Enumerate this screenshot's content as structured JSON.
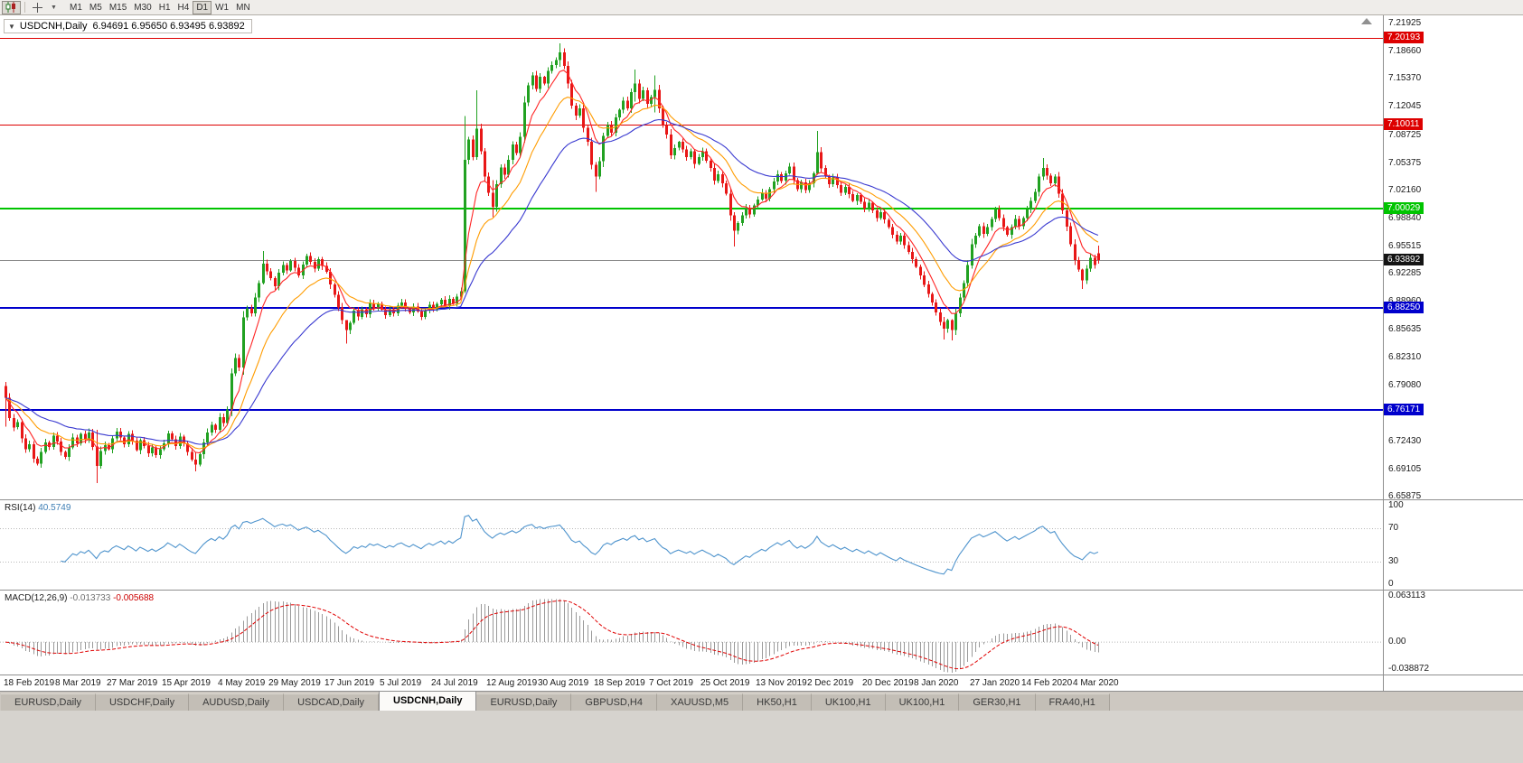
{
  "toolbar": {
    "timeframes": [
      "M1",
      "M5",
      "M15",
      "M30",
      "H1",
      "H4",
      "D1",
      "W1",
      "MN"
    ],
    "active_timeframe": "D1"
  },
  "chart": {
    "symbol": "USDCNH,Daily",
    "ohlc_text": "6.94691 6.95650 6.93495 6.93892",
    "levels": [
      {
        "price": 7.20193,
        "label": "7.20193",
        "color": "#dd0000",
        "width": 1
      },
      {
        "price": 7.10011,
        "label": "7.10011",
        "color": "#dd0000",
        "width": 1
      },
      {
        "price": 7.00029,
        "label": "7.00029",
        "color": "#00c400",
        "width": 2
      },
      {
        "price": 6.8825,
        "label": "6.88250",
        "color": "#0000cc",
        "width": 2
      },
      {
        "price": 6.76171,
        "label": "6.76171",
        "color": "#0000cc",
        "width": 2
      }
    ],
    "price_axis_labels": [
      "7.21925",
      "7.18660",
      "7.15370",
      "7.12045",
      "7.08725",
      "7.05375",
      "7.02160",
      "6.98840",
      "6.95515",
      "6.92285",
      "6.88960",
      "6.85635",
      "6.82310",
      "6.79080",
      "6.75755",
      "6.72430",
      "6.69105",
      "6.65875"
    ],
    "current_price_badge": "6.93892",
    "date_labels": [
      {
        "label": "18 Feb 2019",
        "index": 0
      },
      {
        "label": "8 Mar 2019",
        "index": 13
      },
      {
        "label": "27 Mar 2019",
        "index": 26
      },
      {
        "label": "15 Apr 2019",
        "index": 40
      },
      {
        "label": "4 May 2019",
        "index": 54
      },
      {
        "label": "29 May 2019",
        "index": 67
      },
      {
        "label": "17 Jun 2019",
        "index": 81
      },
      {
        "label": "5 Jul 2019",
        "index": 95
      },
      {
        "label": "24 Jul 2019",
        "index": 108
      },
      {
        "label": "12 Aug 2019",
        "index": 122
      },
      {
        "label": "30 Aug 2019",
        "index": 135
      },
      {
        "label": "18 Sep 2019",
        "index": 149
      },
      {
        "label": "7 Oct 2019",
        "index": 163
      },
      {
        "label": "25 Oct 2019",
        "index": 176
      },
      {
        "label": "13 Nov 2019",
        "index": 190
      },
      {
        "label": "2 Dec 2019",
        "index": 203
      },
      {
        "label": "20 Dec 2019",
        "index": 217
      },
      {
        "label": "8 Jan 2020",
        "index": 230
      },
      {
        "label": "27 Jan 2020",
        "index": 244
      },
      {
        "label": "14 Feb 2020",
        "index": 257
      },
      {
        "label": "4 Mar 2020",
        "index": 270
      }
    ]
  },
  "rsi": {
    "label": "RSI(14)",
    "value": "40.5749",
    "axis": [
      {
        "label": "100",
        "value": 100
      },
      {
        "label": "70",
        "value": 70
      },
      {
        "label": "30",
        "value": 30
      },
      {
        "label": "0",
        "value": 0
      }
    ],
    "guide_levels": [
      70,
      30
    ],
    "line_color": "#4f94cd"
  },
  "macd": {
    "label": "MACD(12,26,9)",
    "value_main": "-0.013733",
    "value_signal": "-0.005688",
    "axis": [
      {
        "label": "0.063113",
        "value": 0.063113
      },
      {
        "label": "0.00",
        "value": 0.0
      },
      {
        "label": "-0.038872",
        "value": -0.038872
      }
    ],
    "hist_color": "#9a9a9a",
    "signal_color": "#e00000"
  },
  "tabs": [
    {
      "label": "EURUSD,Daily",
      "active": false
    },
    {
      "label": "USDCHF,Daily",
      "active": false
    },
    {
      "label": "AUDUSD,Daily",
      "active": false
    },
    {
      "label": "USDCAD,Daily",
      "active": false
    },
    {
      "label": "USDCNH,Daily",
      "active": true
    },
    {
      "label": "EURUSD,Daily",
      "active": false
    },
    {
      "label": "GBPUSD,H4",
      "active": false
    },
    {
      "label": "XAUUSD,M5",
      "active": false
    },
    {
      "label": "HK50,H1",
      "active": false
    },
    {
      "label": "UK100,H1",
      "active": false
    },
    {
      "label": "UK100,H1",
      "active": false
    },
    {
      "label": "GER30,H1",
      "active": false
    },
    {
      "label": "FRA40,H1",
      "active": false
    }
  ],
  "colors": {
    "up": "#21a121",
    "down": "#e81717",
    "bid_line": "#8c8c8c",
    "axis_text": "#1a1a1a",
    "badge_current_bg": "#141414"
  },
  "chart_data": {
    "type": "candlestick",
    "symbol": "USDCNH",
    "timeframe": "Daily",
    "current": {
      "open": 6.94691,
      "high": 6.9565,
      "low": 6.93495,
      "close": 6.93892
    },
    "first_open": 6.79,
    "y_axis_range": [
      6.6535,
      7.229
    ],
    "overlays": [
      {
        "name": "ma-fast",
        "period": 7,
        "color": "#ff2525"
      },
      {
        "name": "ma-mid",
        "period": 16,
        "color": "#ff9c00"
      },
      {
        "name": "ma-slow",
        "period": 33,
        "color": "#3a3ad0"
      }
    ],
    "indicators": [
      {
        "name": "RSI",
        "period": 14,
        "last": 40.5749
      },
      {
        "name": "MACD",
        "params": [
          12,
          26,
          9
        ],
        "last_main": -0.013733,
        "last_signal": -0.005688
      }
    ],
    "levels": [
      7.20193,
      7.10011,
      7.00029,
      6.8825,
      6.76171
    ],
    "wick_overrides": {
      "0": [
        6.795,
        6.742
      ],
      "23": [
        6.738,
        6.675
      ],
      "48": [
        6.712,
        6.689
      ],
      "65": [
        6.95,
        6.91
      ],
      "86": [
        6.868,
        6.84
      ],
      "116": [
        7.11,
        6.9
      ],
      "119": [
        7.14,
        7.058
      ],
      "123": [
        7.034,
        6.99
      ],
      "140": [
        7.196,
        7.168
      ],
      "149": [
        7.055,
        7.02
      ],
      "159": [
        7.165,
        7.127
      ],
      "164": [
        7.158,
        7.114
      ],
      "184": [
        6.996,
        6.955
      ],
      "205": [
        7.092,
        7.04
      ],
      "237": [
        6.872,
        6.845
      ],
      "239": [
        6.869,
        6.844
      ],
      "262": [
        7.06,
        7.034
      ],
      "272": [
        6.929,
        6.905
      ]
    },
    "closes": [
      6.776,
      6.752,
      6.741,
      6.747,
      6.728,
      6.715,
      6.721,
      6.704,
      6.698,
      6.712,
      6.723,
      6.718,
      6.731,
      6.724,
      6.712,
      6.706,
      6.717,
      6.729,
      6.722,
      6.733,
      6.726,
      6.735,
      6.718,
      6.695,
      6.713,
      6.72,
      6.715,
      6.728,
      6.736,
      6.729,
      6.721,
      6.733,
      6.725,
      6.714,
      6.726,
      6.719,
      6.71,
      6.717,
      6.708,
      6.715,
      6.722,
      6.734,
      6.727,
      6.719,
      6.73,
      6.722,
      6.712,
      6.703,
      6.697,
      6.709,
      6.723,
      6.735,
      6.744,
      6.738,
      6.753,
      6.746,
      6.762,
      6.805,
      6.823,
      6.812,
      6.871,
      6.882,
      6.876,
      6.895,
      6.912,
      6.935,
      6.926,
      6.918,
      6.908,
      6.924,
      6.933,
      6.927,
      6.938,
      6.93,
      6.921,
      6.934,
      6.944,
      6.937,
      6.929,
      6.94,
      6.932,
      6.925,
      6.91,
      6.898,
      6.883,
      6.868,
      6.856,
      6.865,
      6.879,
      6.872,
      6.881,
      6.875,
      6.888,
      6.882,
      6.887,
      6.88,
      6.874,
      6.881,
      6.876,
      6.885,
      6.889,
      6.882,
      6.877,
      6.884,
      6.878,
      6.872,
      6.88,
      6.886,
      6.881,
      6.887,
      6.892,
      6.885,
      6.893,
      6.888,
      6.896,
      6.902,
      7.058,
      7.082,
      7.061,
      7.095,
      7.068,
      7.038,
      7.019,
      7.002,
      7.029,
      7.049,
      7.04,
      7.058,
      7.076,
      7.066,
      7.085,
      7.126,
      7.146,
      7.158,
      7.142,
      7.156,
      7.148,
      7.163,
      7.17,
      7.176,
      7.185,
      7.169,
      7.148,
      7.122,
      7.11,
      7.119,
      7.096,
      7.079,
      7.052,
      7.038,
      7.056,
      7.086,
      7.099,
      7.09,
      7.108,
      7.117,
      7.128,
      7.119,
      7.138,
      7.148,
      7.13,
      7.14,
      7.124,
      7.132,
      7.141,
      7.119,
      7.099,
      7.088,
      7.063,
      7.072,
      7.079,
      7.07,
      7.061,
      7.068,
      7.053,
      7.061,
      7.068,
      7.057,
      7.048,
      7.033,
      7.041,
      7.03,
      7.018,
      6.992,
      6.974,
      6.983,
      6.992,
      7.001,
      6.993,
      7.004,
      7.011,
      7.019,
      7.012,
      7.023,
      7.032,
      7.041,
      7.033,
      7.042,
      7.05,
      7.034,
      7.023,
      7.031,
      7.022,
      7.03,
      7.042,
      7.067,
      7.048,
      7.038,
      7.029,
      7.037,
      7.028,
      7.019,
      7.026,
      7.017,
      7.009,
      7.016,
      7.008,
      7.0,
      7.007,
      6.998,
      6.989,
      6.996,
      6.987,
      6.978,
      6.969,
      6.961,
      6.968,
      6.957,
      6.949,
      6.94,
      6.931,
      6.921,
      6.91,
      6.899,
      6.889,
      6.877,
      6.866,
      6.858,
      6.868,
      6.856,
      6.876,
      6.895,
      6.912,
      6.933,
      6.958,
      6.968,
      6.979,
      6.97,
      6.978,
      6.988,
      6.999,
      6.989,
      6.978,
      6.969,
      6.978,
      6.988,
      6.979,
      6.989,
      6.999,
      7.009,
      7.02,
      7.038,
      7.048,
      7.039,
      7.03,
      7.038,
      7.018,
      6.998,
      6.979,
      6.958,
      6.939,
      6.928,
      6.915,
      6.929,
      6.942,
      6.933,
      6.93892
    ]
  }
}
